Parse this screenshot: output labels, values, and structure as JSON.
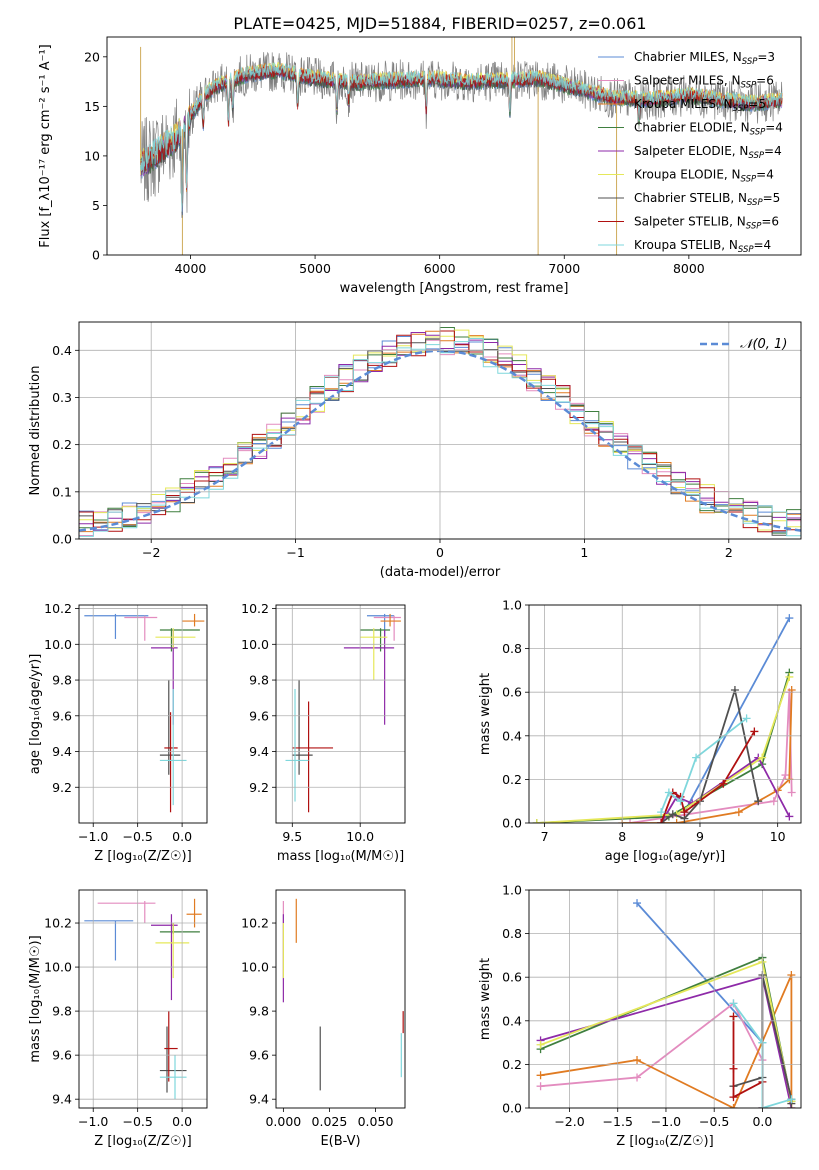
{
  "figure_title": "PLATE=0425, MJD=51884, FIBERID=0257, z=0.061",
  "colors": {
    "miles_chabrier": "#5b8bd6",
    "miles_salpeter": "#e38cbf",
    "miles_kroupa": "#e07b22",
    "elodie_chabrier": "#3f7f3f",
    "elodie_salpeter": "#8e2aa8",
    "elodie_kroupa": "#e5e85a",
    "stelib_chabrier": "#505050",
    "stelib_salpeter": "#b01010",
    "stelib_kroupa": "#7fd7dc",
    "data": "#808080",
    "normal": "#5b8bd6"
  },
  "chart_data": [
    {
      "id": "spectrum",
      "type": "line",
      "xlabel": "wavelength [Angstrom, rest frame]",
      "ylabel": "Flux [f_λ10⁻¹⁷ erg cm⁻² s⁻¹ A⁻¹]",
      "xlim": [
        3330,
        8900
      ],
      "ylim": [
        0,
        22
      ],
      "xticks": [
        4000,
        5000,
        6000,
        7000,
        8000
      ],
      "yticks": [
        0,
        5,
        10,
        15,
        20
      ],
      "legend": [
        "Chabrier MILES, N_SSP=3",
        "Salpeter MILES, N_SSP=6",
        "Kroupa MILES, N_SSP=5",
        "Chabrier ELODIE, N_SSP=4",
        "Salpeter ELODIE, N_SSP=4",
        "Kroupa ELODIE, N_SSP=4",
        "Chabrier STELIB, N_SSP=5",
        "Salpeter STELIB, N_SSP=6",
        "Kroupa STELIB, N_SSP=4"
      ],
      "continuum": {
        "x": [
          3600,
          3700,
          3800,
          3900,
          4000,
          4100,
          4200,
          4300,
          4400,
          4500,
          4700,
          5000,
          5300,
          5600,
          5900,
          6200,
          6500,
          6800,
          7100,
          7400,
          7700,
          8000,
          8300,
          8500,
          8750
        ],
        "y": [
          9,
          10,
          11,
          12,
          14,
          16,
          17,
          17.5,
          18,
          18.3,
          18.6,
          17.8,
          17.4,
          17.6,
          17.8,
          17.5,
          17.6,
          17.8,
          16.8,
          15.8,
          15.7,
          16.1,
          15.6,
          15.3,
          15.6
        ]
      },
      "legend_position": "upper-right"
    },
    {
      "id": "residuals",
      "type": "step",
      "xlabel": "(data-model)/error",
      "ylabel": "Normed distribution",
      "xlim": [
        -2.5,
        2.5
      ],
      "ylim": [
        0,
        0.46
      ],
      "xticks": [
        -2,
        -1,
        0,
        1,
        2
      ],
      "yticks": [
        0.0,
        0.1,
        0.2,
        0.3,
        0.4
      ],
      "normal_label": "𝒩(0, 1)",
      "bin_width": 0.1,
      "legend_position": "upper-right"
    },
    {
      "id": "age_vs_Z",
      "type": "errorbar",
      "xlabel": "Z [log₁₀(Z/Z☉)]",
      "ylabel": "age  [log₁₀(age/yr)]",
      "xlim": [
        -1.16,
        0.28
      ],
      "ylim": [
        9.0,
        10.22
      ],
      "xticks": [
        -1.0,
        -0.5,
        0.0
      ],
      "yticks": [
        9.2,
        9.4,
        9.6,
        9.8,
        10.0,
        10.2
      ],
      "points": [
        {
          "c": "miles_chabrier",
          "x": -0.75,
          "y": 10.16,
          "xlo": -1.1,
          "xhi": -0.38,
          "ylo": 10.03,
          "yhi": 10.17
        },
        {
          "c": "miles_salpeter",
          "x": -0.42,
          "y": 10.15,
          "xlo": -0.65,
          "xhi": -0.28,
          "ylo": 10.02,
          "yhi": 10.16
        },
        {
          "c": "miles_kroupa",
          "x": 0.14,
          "y": 10.13,
          "xlo": 0.0,
          "xhi": 0.25,
          "ylo": 10.1,
          "yhi": 10.17
        },
        {
          "c": "elodie_chabrier",
          "x": -0.12,
          "y": 10.08,
          "xlo": -0.25,
          "xhi": 0.2,
          "ylo": 9.96,
          "yhi": 10.09
        },
        {
          "c": "elodie_salpeter",
          "x": -0.1,
          "y": 9.98,
          "xlo": -0.35,
          "xhi": -0.05,
          "ylo": 9.55,
          "yhi": 10.08
        },
        {
          "c": "elodie_kroupa",
          "x": -0.1,
          "y": 10.04,
          "xlo": -0.3,
          "xhi": 0.15,
          "ylo": 9.98,
          "yhi": 10.09
        },
        {
          "c": "stelib_chabrier",
          "x": -0.15,
          "y": 9.38,
          "xlo": -0.25,
          "xhi": -0.02,
          "ylo": 9.27,
          "yhi": 9.8
        },
        {
          "c": "stelib_salpeter",
          "x": -0.13,
          "y": 9.42,
          "xlo": -0.2,
          "xhi": -0.05,
          "ylo": 9.06,
          "yhi": 9.62
        },
        {
          "c": "stelib_kroupa",
          "x": -0.1,
          "y": 9.35,
          "xlo": -0.25,
          "xhi": 0.05,
          "ylo": 9.1,
          "yhi": 9.75
        }
      ]
    },
    {
      "id": "age_vs_mass",
      "type": "errorbar",
      "xlabel": "mass [log₁₀(M/M☉)]",
      "ylabel": "",
      "xlim": [
        9.38,
        10.33
      ],
      "ylim": [
        9.0,
        10.22
      ],
      "xticks": [
        9.5,
        10.0
      ],
      "yticks": [
        9.2,
        9.4,
        9.6,
        9.8,
        10.0,
        10.2
      ],
      "points": [
        {
          "c": "miles_chabrier",
          "x": 10.18,
          "y": 10.16,
          "xlo": 10.05,
          "xhi": 10.25,
          "ylo": 10.03,
          "yhi": 10.17
        },
        {
          "c": "miles_salpeter",
          "x": 10.25,
          "y": 10.15,
          "xlo": 10.1,
          "xhi": 10.3,
          "ylo": 10.02,
          "yhi": 10.16
        },
        {
          "c": "miles_kroupa",
          "x": 10.22,
          "y": 10.13,
          "xlo": 10.15,
          "xhi": 10.3,
          "ylo": 10.1,
          "yhi": 10.17
        },
        {
          "c": "elodie_chabrier",
          "x": 10.15,
          "y": 10.08,
          "xlo": 10.0,
          "xhi": 10.22,
          "ylo": 9.96,
          "yhi": 10.09
        },
        {
          "c": "elodie_salpeter",
          "x": 10.18,
          "y": 9.98,
          "xlo": 9.88,
          "xhi": 10.25,
          "ylo": 9.55,
          "yhi": 10.08
        },
        {
          "c": "elodie_kroupa",
          "x": 10.1,
          "y": 10.04,
          "xlo": 10.0,
          "xhi": 10.2,
          "ylo": 9.8,
          "yhi": 10.09
        },
        {
          "c": "stelib_chabrier",
          "x": 9.55,
          "y": 9.38,
          "xlo": 9.5,
          "xhi": 9.65,
          "ylo": 9.27,
          "yhi": 9.8
        },
        {
          "c": "stelib_salpeter",
          "x": 9.62,
          "y": 9.42,
          "xlo": 9.5,
          "xhi": 9.8,
          "ylo": 9.06,
          "yhi": 9.68
        },
        {
          "c": "stelib_kroupa",
          "x": 9.52,
          "y": 9.35,
          "xlo": 9.45,
          "xhi": 9.62,
          "ylo": 9.12,
          "yhi": 9.75
        }
      ]
    },
    {
      "id": "weight_vs_age",
      "type": "line",
      "xlabel": "age  [log₁₀(age/yr)]",
      "ylabel": "mass weight",
      "xlim": [
        6.8,
        10.3
      ],
      "ylim": [
        0,
        1.0
      ],
      "xticks": [
        7,
        8,
        9,
        10
      ],
      "yticks": [
        0.0,
        0.2,
        0.4,
        0.6,
        0.8,
        1.0
      ],
      "series": [
        {
          "c": "miles_chabrier",
          "x": [
            8.8,
            10.15
          ],
          "y": [
            0.05,
            0.94
          ]
        },
        {
          "c": "miles_salpeter",
          "x": [
            8.1,
            9.95,
            10.1,
            10.15,
            10.18
          ],
          "y": [
            0.0,
            0.1,
            0.22,
            0.6,
            0.14
          ]
        },
        {
          "c": "miles_kroupa",
          "x": [
            8.0,
            8.7,
            9.5,
            10.0,
            10.15,
            10.18
          ],
          "y": [
            0.0,
            0.0,
            0.05,
            0.15,
            0.2,
            0.61
          ]
        },
        {
          "c": "elodie_chabrier",
          "x": [
            6.9,
            8.6,
            9.8,
            10.15
          ],
          "y": [
            0.0,
            0.03,
            0.27,
            0.69
          ]
        },
        {
          "c": "elodie_salpeter",
          "x": [
            8.5,
            8.7,
            8.9,
            9.75,
            10.15
          ],
          "y": [
            0.0,
            0.12,
            0.09,
            0.3,
            0.03
          ]
        },
        {
          "c": "elodie_kroupa",
          "x": [
            6.9,
            8.7,
            9.8,
            10.15
          ],
          "y": [
            0.0,
            0.04,
            0.3,
            0.67
          ]
        },
        {
          "c": "stelib_chabrier",
          "x": [
            8.5,
            8.65,
            8.8,
            9.0,
            9.45,
            9.75
          ],
          "y": [
            0.0,
            0.04,
            0.02,
            0.1,
            0.61,
            0.1
          ]
        },
        {
          "c": "stelib_salpeter",
          "x": [
            8.5,
            8.65,
            8.75,
            8.8,
            9.3,
            9.7
          ],
          "y": [
            0.0,
            0.14,
            0.12,
            0.05,
            0.18,
            0.42
          ]
        },
        {
          "c": "stelib_kroupa",
          "x": [
            8.5,
            8.6,
            8.75,
            8.95,
            9.6
          ],
          "y": [
            0.05,
            0.14,
            0.1,
            0.3,
            0.48
          ]
        }
      ]
    },
    {
      "id": "mass_vs_Z",
      "type": "errorbar",
      "xlabel": "Z [log₁₀(Z/Z☉)]",
      "ylabel": "mass [log₁₀(M/M☉)]",
      "xlim": [
        -1.16,
        0.28
      ],
      "ylim": [
        9.36,
        10.35
      ],
      "xticks": [
        -1.0,
        -0.5,
        0.0
      ],
      "yticks": [
        9.4,
        9.6,
        9.8,
        10.0,
        10.2
      ],
      "points": [
        {
          "c": "miles_chabrier",
          "x": -0.75,
          "y": 10.21,
          "xlo": -1.1,
          "xhi": -0.55,
          "ylo": 10.03,
          "yhi": 10.21
        },
        {
          "c": "miles_salpeter",
          "x": -0.42,
          "y": 10.29,
          "xlo": -0.95,
          "xhi": -0.3,
          "ylo": 10.2,
          "yhi": 10.3
        },
        {
          "c": "miles_kroupa",
          "x": 0.14,
          "y": 10.24,
          "xlo": 0.05,
          "xhi": 0.22,
          "ylo": 10.18,
          "yhi": 10.31
        },
        {
          "c": "elodie_chabrier",
          "x": -0.1,
          "y": 10.16,
          "xlo": -0.25,
          "xhi": 0.2,
          "ylo": 10.15,
          "yhi": 10.2
        },
        {
          "c": "elodie_salpeter",
          "x": -0.12,
          "y": 10.19,
          "xlo": -0.35,
          "xhi": -0.05,
          "ylo": 9.85,
          "yhi": 10.24
        },
        {
          "c": "elodie_kroupa",
          "x": -0.1,
          "y": 10.11,
          "xlo": -0.3,
          "xhi": 0.08,
          "ylo": 9.95,
          "yhi": 10.2
        },
        {
          "c": "stelib_chabrier",
          "x": -0.17,
          "y": 9.53,
          "xlo": -0.25,
          "xhi": 0.05,
          "ylo": 9.43,
          "yhi": 9.73
        },
        {
          "c": "stelib_salpeter",
          "x": -0.15,
          "y": 9.63,
          "xlo": -0.2,
          "xhi": -0.05,
          "ylo": 9.48,
          "yhi": 9.8
        },
        {
          "c": "stelib_kroupa",
          "x": -0.08,
          "y": 9.5,
          "xlo": -0.25,
          "xhi": 0.05,
          "ylo": 9.4,
          "yhi": 9.6
        }
      ]
    },
    {
      "id": "mass_vs_ebv",
      "type": "errorbar",
      "xlabel": "E(B-V)",
      "ylabel": "",
      "xlim": [
        -0.004,
        0.066
      ],
      "ylim": [
        9.36,
        10.35
      ],
      "xticks": [
        0.0,
        0.025,
        0.05
      ],
      "yticks": [
        9.4,
        9.6,
        9.8,
        10.0,
        10.2
      ],
      "points": [
        {
          "c": "miles_salpeter",
          "x": 0.0,
          "y": 10.25,
          "ylo": 10.2,
          "yhi": 10.3
        },
        {
          "c": "elodie_salpeter",
          "x": 0.0,
          "y": 10.05,
          "ylo": 9.84,
          "yhi": 10.24
        },
        {
          "c": "elodie_kroupa",
          "x": 0.0,
          "y": 10.1,
          "ylo": 9.95,
          "yhi": 10.2
        },
        {
          "c": "miles_kroupa",
          "x": 0.007,
          "y": 10.21,
          "ylo": 10.11,
          "yhi": 10.31
        },
        {
          "c": "stelib_chabrier",
          "x": 0.02,
          "y": 9.58,
          "ylo": 9.44,
          "yhi": 9.73
        },
        {
          "c": "stelib_salpeter",
          "x": 0.065,
          "y": 9.75,
          "ylo": 9.7,
          "yhi": 9.8
        },
        {
          "c": "stelib_kroupa",
          "x": 0.064,
          "y": 9.6,
          "ylo": 9.5,
          "yhi": 9.7
        }
      ]
    },
    {
      "id": "weight_vs_Z",
      "type": "line",
      "xlabel": "Z [log₁₀(Z/Z☉)]",
      "ylabel": "mass weight",
      "xlim": [
        -2.42,
        0.4
      ],
      "ylim": [
        0,
        1.0
      ],
      "xticks": [
        -2.0,
        -1.5,
        -1.0,
        -0.5,
        0.0
      ],
      "yticks": [
        0.0,
        0.2,
        0.4,
        0.6,
        0.8,
        1.0
      ],
      "series": [
        {
          "c": "miles_chabrier",
          "x": [
            -1.3,
            0.0,
            0.0
          ],
          "y": [
            0.94,
            0.3,
            0.0
          ]
        },
        {
          "c": "miles_salpeter",
          "x": [
            -2.3,
            -1.3,
            -0.3,
            0.0,
            0.0
          ],
          "y": [
            0.1,
            0.14,
            0.48,
            0.22,
            0.0
          ]
        },
        {
          "c": "miles_kroupa",
          "x": [
            -2.3,
            -1.3,
            -0.3,
            0.3,
            0.3
          ],
          "y": [
            0.15,
            0.22,
            0.0,
            0.61,
            0.0
          ]
        },
        {
          "c": "elodie_chabrier",
          "x": [
            -2.3,
            0.0,
            0.3
          ],
          "y": [
            0.27,
            0.69,
            0.03
          ]
        },
        {
          "c": "elodie_salpeter",
          "x": [
            -2.3,
            0.0,
            0.3
          ],
          "y": [
            0.31,
            0.6,
            0.0
          ]
        },
        {
          "c": "elodie_kroupa",
          "x": [
            -2.3,
            0.0,
            0.3
          ],
          "y": [
            0.29,
            0.67,
            0.03
          ]
        },
        {
          "c": "stelib_chabrier",
          "x": [
            -0.3,
            0.0,
            0.0,
            0.3,
            0.3
          ],
          "y": [
            0.1,
            0.14,
            0.61,
            0.04,
            0.02
          ]
        },
        {
          "c": "stelib_salpeter",
          "x": [
            -0.3,
            -0.3,
            -0.3,
            0.0,
            0.0
          ],
          "y": [
            0.18,
            0.42,
            0.05,
            0.12,
            0.0
          ]
        },
        {
          "c": "stelib_kroupa",
          "x": [
            -0.3,
            0.0,
            0.0,
            0.3
          ],
          "y": [
            0.48,
            0.3,
            0.0,
            0.04
          ]
        }
      ]
    }
  ]
}
